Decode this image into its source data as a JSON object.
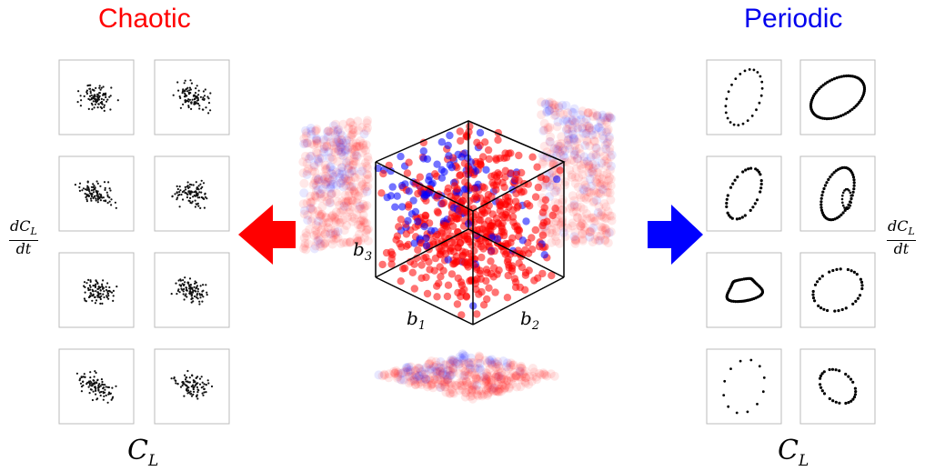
{
  "titles": {
    "chaotic": "Chaotic",
    "periodic": "Periodic",
    "chaotic_color": "#ff0000",
    "periodic_color": "#0000ee"
  },
  "axes": {
    "x_label": "C",
    "x_sub": "L",
    "y_num": "dC",
    "y_num_sub": "L",
    "y_den": "dt"
  },
  "cube_labels": {
    "b1": "b",
    "b1_sub": "1",
    "b2": "b",
    "b2_sub": "2",
    "b3": "b",
    "b3_sub": "3"
  },
  "colors": {
    "red_point": "#ff0000",
    "blue_point": "#0000ff",
    "left_arrow": "#ff0000",
    "right_arrow": "#0000ff",
    "frame": "#bbbbbb"
  },
  "panels": {
    "chaotic_count": 8,
    "periodic_count": 8
  }
}
